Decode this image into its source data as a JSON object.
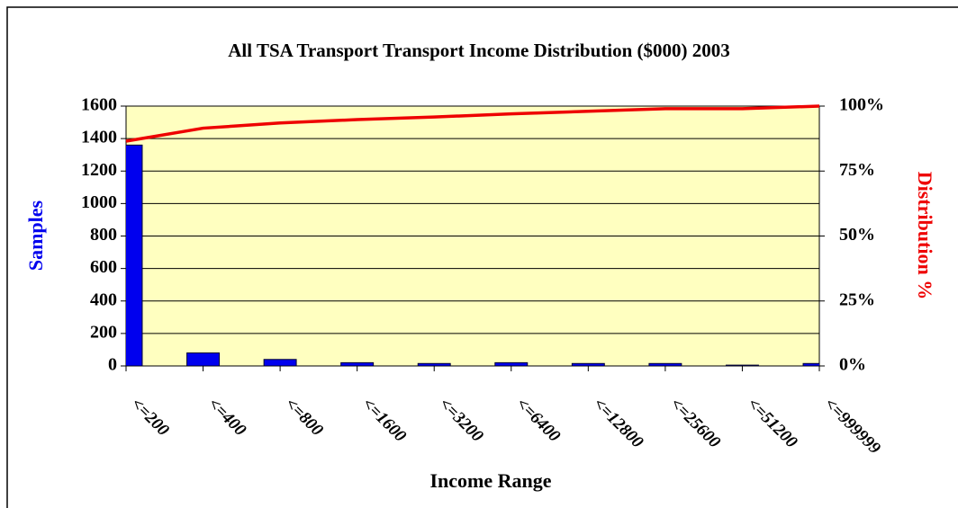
{
  "chart_data": {
    "type": "bar-line",
    "title": "All TSA Transport Transport Income Distribution ($000) 2003",
    "x_label": "Income Range",
    "y_label": "Samples",
    "y2_label": "Distribution %",
    "categories": [
      "<=200",
      "<=400",
      "<=800",
      "<=1600",
      "<=3200",
      "<=6400",
      "<=12800",
      "<=25600",
      "<=51200",
      "<=999999"
    ],
    "series": [
      {
        "name": "Samples",
        "type": "bar",
        "color": "#0000ee",
        "values": [
          1360,
          80,
          40,
          20,
          15,
          20,
          15,
          15,
          5,
          15
        ]
      },
      {
        "name": "Distribution %",
        "type": "line",
        "axis": "y2",
        "color": "#ee0000",
        "values": [
          86.5,
          91.5,
          93.5,
          94.8,
          95.8,
          97,
          98,
          99,
          99,
          100
        ]
      }
    ],
    "ylim": [
      0,
      1600
    ],
    "yticks": [
      0,
      200,
      400,
      600,
      800,
      1000,
      1200,
      1400,
      1600
    ],
    "y2lim": [
      0,
      100
    ],
    "y2ticks": [
      {
        "value": 0,
        "label": "0%"
      },
      {
        "value": 25,
        "label": "25%"
      },
      {
        "value": 50,
        "label": "50%"
      },
      {
        "value": 75,
        "label": "75%"
      },
      {
        "value": 100,
        "label": "100%"
      }
    ],
    "grid": true,
    "plot_background": "#ffffc0"
  }
}
